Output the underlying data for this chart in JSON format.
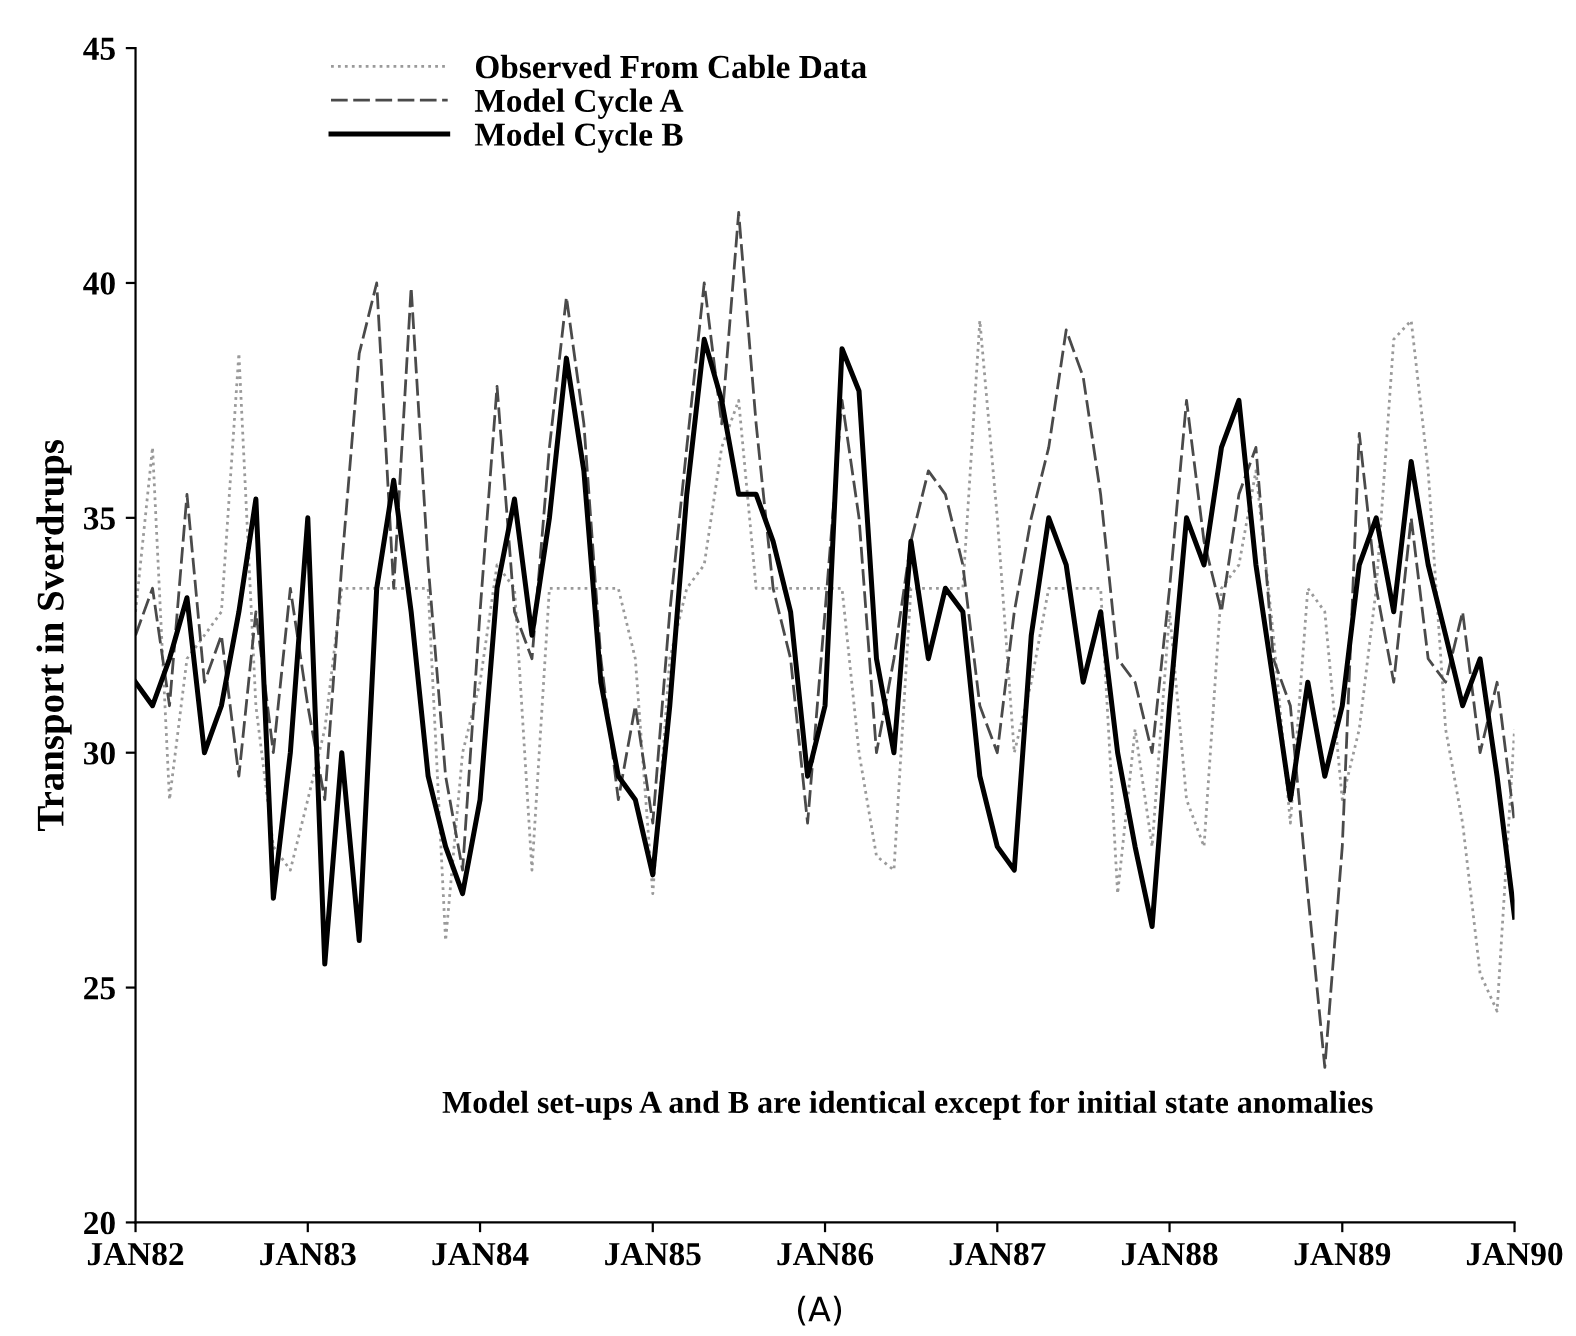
{
  "chart_data": {
    "type": "line",
    "ylabel": "Transport in Sverdrups",
    "x": [
      "1982-01-01",
      "1982-02-06",
      "1982-03-14",
      "1982-04-20",
      "1982-05-27",
      "1982-07-02",
      "1982-08-08",
      "1982-09-13",
      "1982-10-20",
      "1982-11-25",
      "1983-01-01",
      "1983-02-06",
      "1983-03-14",
      "1983-04-20",
      "1983-05-27",
      "1983-07-02",
      "1983-08-08",
      "1983-09-13",
      "1983-10-20",
      "1983-11-25",
      "1984-01-01",
      "1984-02-06",
      "1984-03-14",
      "1984-04-20",
      "1984-05-27",
      "1984-07-02",
      "1984-08-08",
      "1984-09-13",
      "1984-10-20",
      "1984-11-25",
      "1985-01-01",
      "1985-02-06",
      "1985-03-14",
      "1985-04-20",
      "1985-05-27",
      "1985-07-02",
      "1985-08-08",
      "1985-09-13",
      "1985-10-20",
      "1985-11-25",
      "1986-01-01",
      "1986-02-06",
      "1986-03-14",
      "1986-04-20",
      "1986-05-27",
      "1986-07-02",
      "1986-08-08",
      "1986-09-13",
      "1986-10-20",
      "1986-11-25",
      "1987-01-01",
      "1987-02-06",
      "1987-03-14",
      "1987-04-20",
      "1987-05-27",
      "1987-07-02",
      "1987-08-08",
      "1987-09-13",
      "1987-10-20",
      "1987-11-25",
      "1988-01-01",
      "1988-02-06",
      "1988-03-14",
      "1988-04-20",
      "1988-05-27",
      "1988-07-02",
      "1988-08-08",
      "1988-09-13",
      "1988-10-20",
      "1988-11-25",
      "1989-01-01",
      "1989-02-06",
      "1989-03-14",
      "1989-04-20",
      "1989-05-27",
      "1989-07-02",
      "1989-08-08",
      "1989-09-13",
      "1989-10-20",
      "1989-11-25",
      "1990-01-01"
    ],
    "series": [
      {
        "name": "Observed From Cable Data",
        "color": "#9a9a9a",
        "line_style": "dotted",
        "values": [
          33.0,
          36.5,
          29.0,
          32.0,
          32.5,
          33.0,
          38.5,
          31.0,
          28.0,
          27.5,
          29.0,
          30.5,
          33.5,
          33.5,
          33.5,
          33.5,
          33.5,
          33.5,
          26.0,
          30.0,
          31.5,
          34.0,
          33.5,
          27.5,
          33.5,
          33.5,
          33.5,
          33.5,
          33.5,
          32.0,
          27.0,
          32.0,
          33.5,
          34.0,
          36.5,
          37.5,
          33.5,
          33.5,
          33.5,
          33.5,
          33.5,
          33.5,
          30.0,
          27.8,
          27.5,
          33.5,
          33.5,
          33.5,
          33.5,
          39.2,
          35.0,
          30.0,
          31.5,
          33.5,
          33.5,
          33.5,
          33.5,
          27.0,
          30.5,
          28.0,
          33.0,
          29.0,
          28.0,
          33.5,
          34.0,
          36.0,
          32.5,
          28.5,
          33.5,
          33.0,
          29.0,
          30.5,
          33.5,
          38.8,
          39.2,
          36.0,
          30.5,
          28.5,
          25.3,
          24.5,
          30.5
        ]
      },
      {
        "name": "Model Cycle A",
        "color": "#4a4a4a",
        "line_style": "dashed",
        "values": [
          32.5,
          33.5,
          31.0,
          35.5,
          31.5,
          32.5,
          29.5,
          33.0,
          30.0,
          33.5,
          31.0,
          29.0,
          34.0,
          38.5,
          40.0,
          33.5,
          39.9,
          34.0,
          29.5,
          27.5,
          33.0,
          37.8,
          33.0,
          32.0,
          36.5,
          39.7,
          37.0,
          32.0,
          29.0,
          31.0,
          28.5,
          33.0,
          36.5,
          40.0,
          37.0,
          41.5,
          37.0,
          33.5,
          32.0,
          28.5,
          33.0,
          37.5,
          35.0,
          30.0,
          32.0,
          34.5,
          36.0,
          35.5,
          34.0,
          31.0,
          30.0,
          33.0,
          35.0,
          36.5,
          39.0,
          38.0,
          35.5,
          32.0,
          31.5,
          30.0,
          33.5,
          37.5,
          34.5,
          33.0,
          35.5,
          36.5,
          32.0,
          31.0,
          27.0,
          23.3,
          28.0,
          36.8,
          33.5,
          31.5,
          35.0,
          32.0,
          31.5,
          33.0,
          30.0,
          31.5,
          28.5
        ]
      },
      {
        "name": "Model Cycle B",
        "color": "#000000",
        "line_style": "solid",
        "values": [
          31.5,
          31.0,
          32.0,
          33.3,
          30.0,
          31.0,
          33.0,
          35.4,
          26.9,
          30.0,
          35.0,
          25.5,
          30.0,
          26.0,
          33.5,
          35.8,
          33.0,
          29.5,
          28.0,
          27.0,
          29.0,
          33.5,
          35.4,
          32.5,
          35.0,
          38.4,
          36.0,
          31.5,
          29.5,
          29.0,
          27.4,
          31.0,
          35.5,
          38.8,
          37.5,
          35.5,
          35.5,
          34.5,
          33.0,
          29.5,
          31.0,
          38.6,
          37.7,
          32.0,
          30.0,
          34.5,
          32.0,
          33.5,
          33.0,
          29.5,
          28.0,
          27.5,
          32.5,
          35.0,
          34.0,
          31.5,
          33.0,
          30.0,
          28.0,
          26.3,
          31.0,
          35.0,
          34.0,
          36.5,
          37.5,
          34.0,
          31.5,
          29.0,
          31.5,
          29.5,
          31.0,
          34.0,
          35.0,
          33.0,
          36.2,
          34.0,
          32.5,
          31.0,
          32.0,
          29.5,
          26.5
        ]
      }
    ],
    "xlim": [
      "1982-01-01",
      "1990-01-01"
    ],
    "xticks": [
      {
        "value": "1982-01-01",
        "label": "JAN82"
      },
      {
        "value": "1983-01-01",
        "label": "JAN83"
      },
      {
        "value": "1984-01-01",
        "label": "JAN84"
      },
      {
        "value": "1985-01-01",
        "label": "JAN85"
      },
      {
        "value": "1986-01-01",
        "label": "JAN86"
      },
      {
        "value": "1987-01-01",
        "label": "JAN87"
      },
      {
        "value": "1988-01-01",
        "label": "JAN88"
      },
      {
        "value": "1989-01-01",
        "label": "JAN89"
      },
      {
        "value": "1990-01-01",
        "label": "JAN90"
      }
    ],
    "ylim": [
      20,
      45
    ],
    "yticks": [
      20,
      25,
      30,
      35,
      40,
      45
    ],
    "legend": "top left",
    "grid": false,
    "annotations": [
      "Model set-ups A and B are identical except for initial state anomalies",
      "(A)"
    ]
  }
}
